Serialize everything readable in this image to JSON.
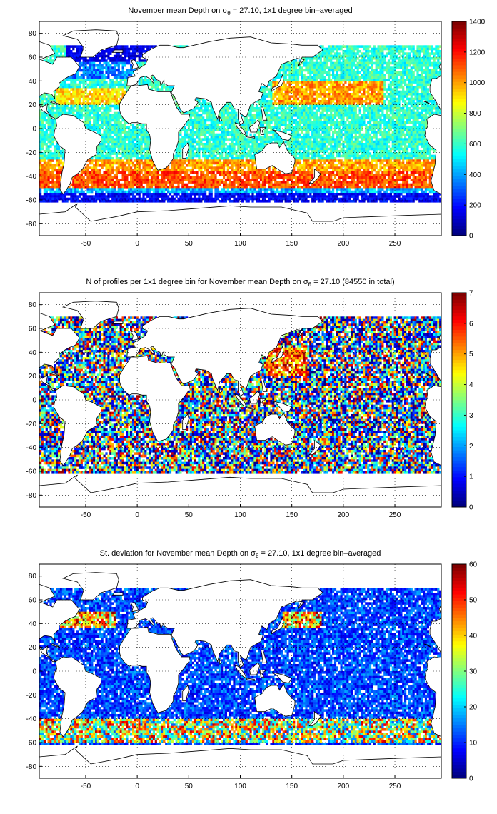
{
  "figure": {
    "panels": [
      {
        "id": "mean-depth",
        "title": "November mean Depth on",
        "title_sigma": "σ",
        "title_sub": "θ",
        "title_rest": " = 27.10, 1x1 degree bin–averaged",
        "colorbar": {
          "min": 0,
          "max": 1400,
          "ticks": [
            "0",
            "200",
            "400",
            "600",
            "800",
            "1000",
            "1200",
            "1400"
          ]
        }
      },
      {
        "id": "profile-count",
        "title": "N of profiles per 1x1 degree bin for November mean Depth on",
        "title_sigma": "σ",
        "title_sub": "θ",
        "title_rest": " = 27.10 (84550 in total)",
        "colorbar": {
          "min": 0,
          "max": 7,
          "ticks": [
            "0",
            "1",
            "2",
            "3",
            "4",
            "5",
            "6",
            "7"
          ]
        }
      },
      {
        "id": "std-deviation",
        "title": "St. deviation for November mean Depth on",
        "title_sigma": "σ",
        "title_sub": "θ",
        "title_rest": " = 27.10, 1x1 degree bin–averaged",
        "colorbar": {
          "min": 0,
          "max": 60,
          "ticks": [
            "0",
            "10",
            "20",
            "30",
            "40",
            "50",
            "60"
          ]
        }
      }
    ],
    "axes": {
      "x_ticks": [
        "-50",
        "0",
        "50",
        "100",
        "150",
        "200",
        "250"
      ],
      "x_values": [
        -50,
        0,
        50,
        100,
        150,
        200,
        250
      ],
      "x_range": [
        -95,
        295
      ],
      "y_ticks": [
        "80",
        "60",
        "40",
        "20",
        "0",
        "-20",
        "-40",
        "-60",
        "-80"
      ],
      "y_values": [
        80,
        60,
        40,
        20,
        0,
        -20,
        -40,
        -60,
        -80
      ],
      "y_range": [
        -90,
        90
      ],
      "grid": "dotted"
    },
    "colormap": "jet"
  }
}
